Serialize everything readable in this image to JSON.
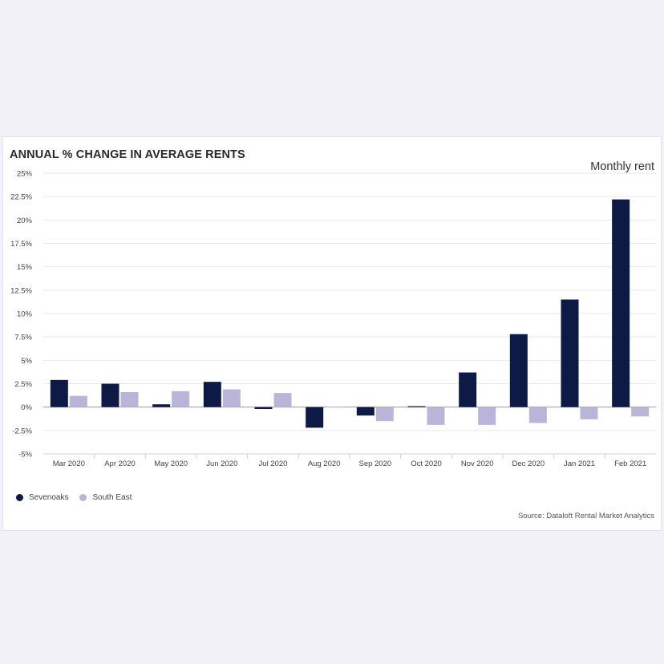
{
  "subtitle": "Monthly rent",
  "source": "Source: Dataloft Rental Market Analytics",
  "colors": {
    "sevenoaks": "#0d1a45",
    "south_east": "#b8b5d9",
    "grid": "#e7e7ed",
    "zero": "#999999"
  },
  "chart_data": {
    "type": "bar",
    "title": "ANNUAL % CHANGE IN AVERAGE RENTS",
    "xlabel": "",
    "ylabel": "",
    "ylim": [
      -5,
      25
    ],
    "yticks": [
      -5,
      -2.5,
      0,
      2.5,
      5,
      7.5,
      10,
      12.5,
      15,
      17.5,
      20,
      22.5,
      25
    ],
    "ytick_labels": [
      "-5%",
      "-2.5%",
      "0%",
      "2.5%",
      "5%",
      "7.5%",
      "10%",
      "12.5%",
      "15%",
      "17.5%",
      "20%",
      "22.5%",
      "25%"
    ],
    "grid": true,
    "legend_position": "bottom-left",
    "categories": [
      "Mar 2020",
      "Apr 2020",
      "May 2020",
      "Jun 2020",
      "Jul 2020",
      "Aug 2020",
      "Sep 2020",
      "Oct 2020",
      "Nov 2020",
      "Dec 2020",
      "Jan 2021",
      "Feb 2021"
    ],
    "series": [
      {
        "name": "Sevenoaks",
        "values": [
          2.9,
          2.5,
          0.3,
          2.7,
          -0.2,
          -2.2,
          -0.9,
          0.1,
          3.7,
          7.8,
          11.5,
          22.2
        ]
      },
      {
        "name": "South East",
        "values": [
          1.2,
          1.6,
          1.7,
          1.9,
          1.5,
          0.05,
          -1.5,
          -1.9,
          -1.9,
          -1.7,
          -1.3,
          -1.0
        ]
      }
    ]
  }
}
